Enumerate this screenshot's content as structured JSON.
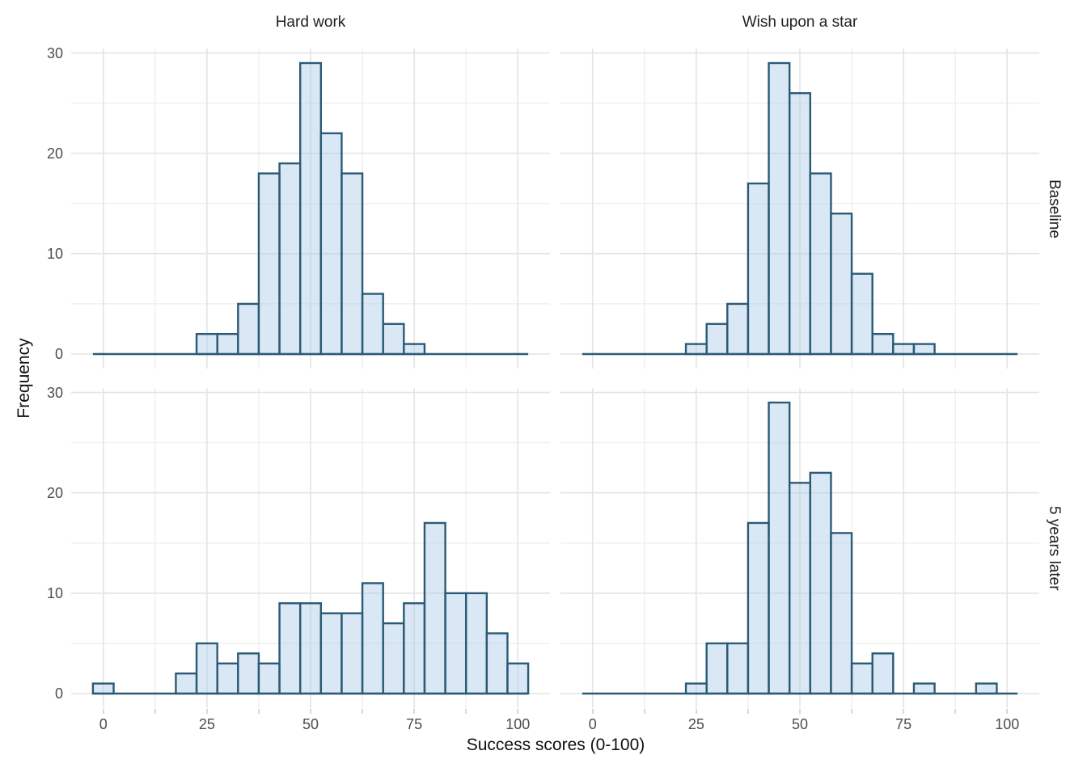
{
  "chart_data": {
    "type": "bar",
    "subtype": "faceted-histogram",
    "title": "",
    "xlabel": "Success scores (0-100)",
    "ylabel": "Frequency",
    "facet": {
      "cols": [
        "Hard work",
        "Wish upon a star"
      ],
      "rows": [
        "Baseline",
        "5 years later"
      ]
    },
    "bin_width": 5,
    "x_domain": [
      -7.75,
      107.75
    ],
    "y_domain": [
      -1.45,
      30.45
    ],
    "x_major_ticks": [
      0,
      25,
      50,
      75,
      100
    ],
    "x_minor_ticks": [
      12.5,
      37.5,
      62.5,
      87.5
    ],
    "y_major_gridlines": [
      0,
      10,
      20,
      30
    ],
    "y_minor_gridlines": [
      5,
      15,
      25
    ],
    "baseline_extent": [
      -2.5,
      102.5
    ],
    "colors": {
      "bar_fill": "#aecde9",
      "bar_fill_opacity": 0.45,
      "bar_stroke": "#2b5a77",
      "grid_major": "#e4e4e4",
      "grid_minor": "#f0f0f0",
      "tick_mark": "#d9d9d9",
      "tick_label": "#4d4d4d",
      "title_text": "#0f0f0f"
    },
    "panels": [
      {
        "row": "Baseline",
        "col": "Hard work",
        "bin_centers": [
          25,
          30,
          35,
          40,
          45,
          50,
          55,
          60,
          65,
          70,
          75
        ],
        "frequencies": [
          2,
          2,
          5,
          18,
          19,
          29,
          22,
          18,
          6,
          3,
          1
        ]
      },
      {
        "row": "Baseline",
        "col": "Wish upon a star",
        "bin_centers": [
          25,
          30,
          35,
          40,
          45,
          50,
          55,
          60,
          65,
          70,
          75,
          80
        ],
        "frequencies": [
          1,
          3,
          5,
          17,
          29,
          26,
          18,
          14,
          8,
          2,
          1,
          1
        ]
      },
      {
        "row": "5 years later",
        "col": "Hard work",
        "bin_centers": [
          0,
          20,
          25,
          30,
          35,
          40,
          45,
          50,
          55,
          60,
          65,
          70,
          75,
          80,
          85,
          90,
          95,
          100
        ],
        "frequencies": [
          1,
          2,
          5,
          3,
          4,
          3,
          9,
          9,
          8,
          8,
          11,
          7,
          9,
          17,
          10,
          10,
          6,
          3
        ]
      },
      {
        "row": "5 years later",
        "col": "Wish upon a star",
        "bin_centers": [
          25,
          30,
          35,
          40,
          45,
          50,
          55,
          60,
          65,
          70,
          80,
          95
        ],
        "frequencies": [
          1,
          5,
          5,
          17,
          29,
          21,
          22,
          16,
          3,
          4,
          1,
          1
        ]
      }
    ]
  }
}
